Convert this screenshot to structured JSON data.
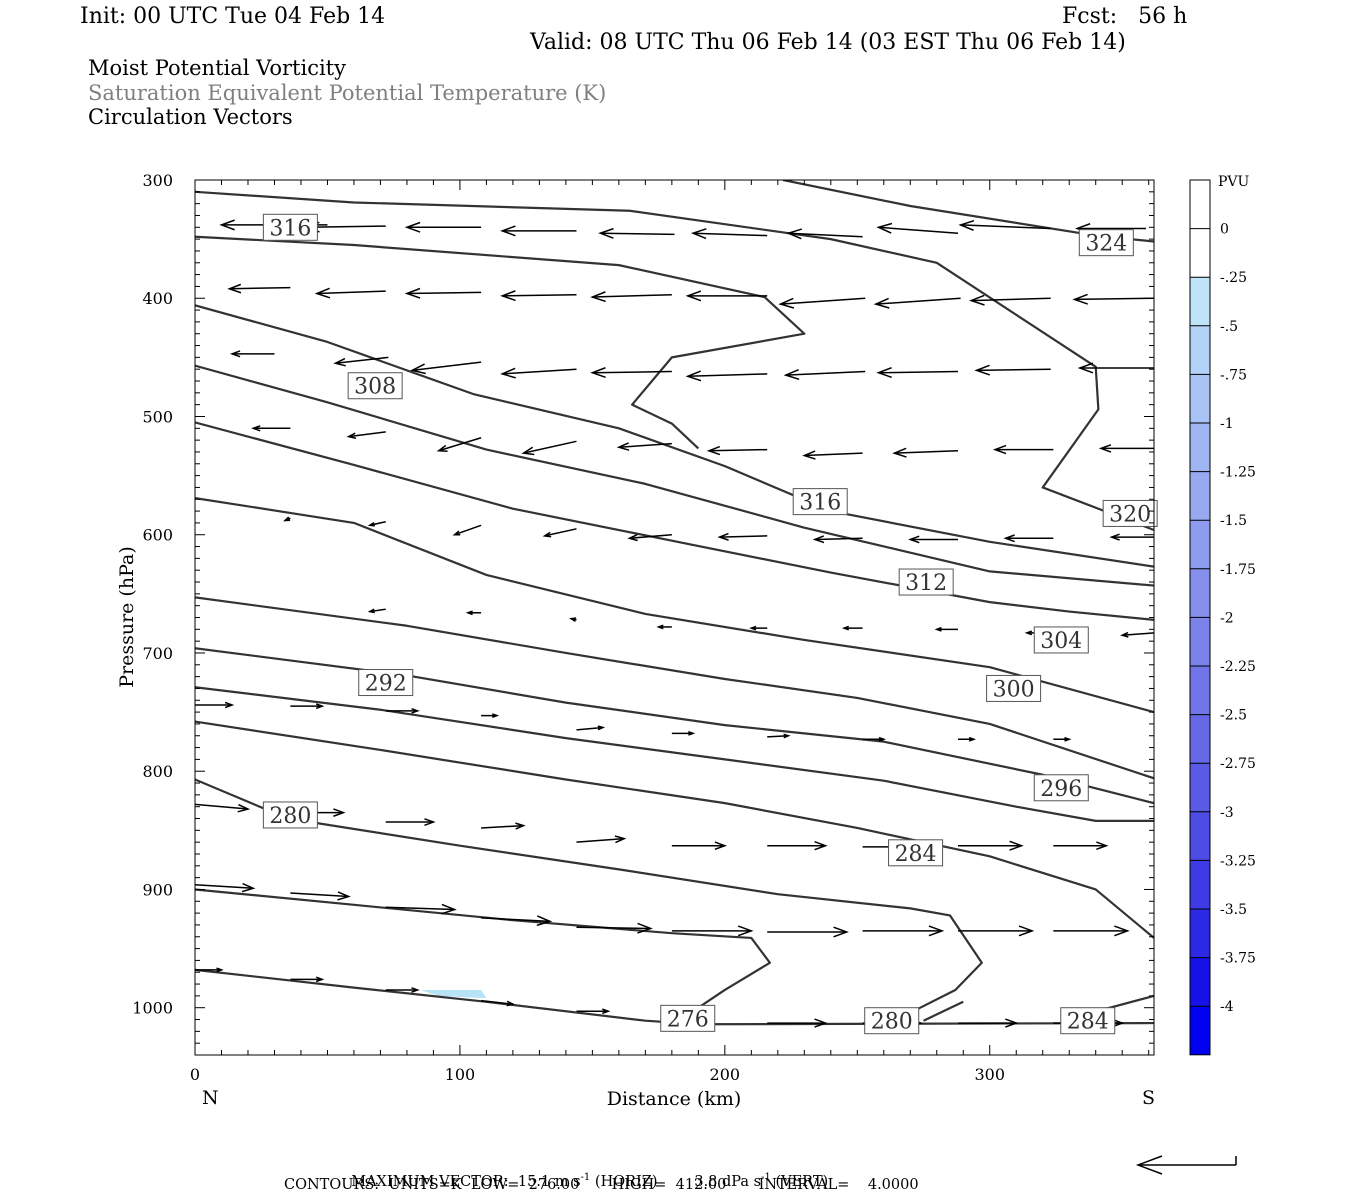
{
  "header": {
    "init": "Init: 00 UTC Tue 04 Feb 14",
    "fcst": "Fcst:   56 h",
    "valid": "Valid: 08 UTC Thu 06 Feb 14 (03 EST Thu 06 Feb 14)",
    "field1": "Moist Potential Vorticity",
    "field2": "Saturation Equivalent Potential Temperature (K)",
    "field3": "Circulation Vectors"
  },
  "footer": {
    "max_vector": "MAXIMUM VECTOR:  15.1 m s",
    "max_vector_sup": "-1",
    "horiz": " (HORIZ)        3.8 dPa s",
    "horiz_sup": "-1",
    "vert": " (VERT)",
    "contours": "CONTOURS:  UNITS=K  LOW=  276.00       HIGH=  412.00       INTERVAL=    4.0000"
  },
  "colors": {
    "contour": "#333333",
    "vector": "#000000",
    "label_fill": "#ffffff",
    "pv_light": "#b8e2f6",
    "grey_text": "#7f7f7f"
  },
  "chart_data": {
    "type": "cross-section",
    "xlabel": "Distance (km)",
    "ylabel": "Pressure (hPa)",
    "x_ticks": [
      "0",
      "100",
      "200",
      "300"
    ],
    "x_tick_values": [
      0,
      100,
      200,
      300
    ],
    "y_ticks": [
      "300",
      "400",
      "500",
      "600",
      "700",
      "800",
      "900",
      "1000"
    ],
    "y_tick_values": [
      300,
      400,
      500,
      600,
      700,
      800,
      900,
      1000
    ],
    "xlim": [
      0,
      362
    ],
    "ylim": [
      300,
      1040
    ],
    "x_end_labels": {
      "left": "N",
      "right": "S"
    },
    "colorbar": {
      "unit": "PVU",
      "labels": [
        "0",
        "-.25",
        "-.5",
        "-.75",
        "-1",
        "-1.25",
        "-1.5",
        "-1.75",
        "-2",
        "-2.25",
        "-2.5",
        "-2.75",
        "-3",
        "-3.25",
        "-3.5",
        "-3.75",
        "-4"
      ],
      "colors": [
        "#ffffff",
        "#ffffff",
        "#bfe4f9",
        "#b2d3f7",
        "#a9c3f4",
        "#9fb5f2",
        "#98a9f0",
        "#8d9cee",
        "#8590ec",
        "#7b82ea",
        "#7175e8",
        "#6668e6",
        "#5a5ae5",
        "#4d4ce4",
        "#3d3be4",
        "#2b29e4",
        "#1612e7",
        "#0000f0"
      ]
    },
    "contours": [
      {
        "value": 276,
        "label": "276",
        "label_at": [
          186,
          1009
        ],
        "points": [
          [
            0,
            968
          ],
          [
            60,
            983
          ],
          [
            110,
            995
          ],
          [
            170,
            1011
          ],
          [
            190,
            1014
          ],
          [
            362,
            1013
          ]
        ]
      },
      {
        "value": 280,
        "label": "280",
        "label_at": [
          36,
          837
        ],
        "points": [
          [
            0,
            900
          ],
          [
            60,
            913
          ],
          [
            120,
            926
          ],
          [
            180,
            937
          ],
          [
            210,
            941
          ],
          [
            217,
            962
          ],
          [
            200,
            985
          ],
          [
            190,
            1000
          ]
        ]
      },
      {
        "value": 280,
        "label": "280",
        "label_at": [
          263,
          1011
        ],
        "points": [
          [
            275,
            1011
          ],
          [
            290,
            995
          ]
        ]
      },
      {
        "value": 284,
        "label": "284",
        "label_at": [
          272,
          869
        ],
        "points": [
          [
            0,
            807
          ],
          [
            35,
            840
          ],
          [
            100,
            863
          ],
          [
            160,
            883
          ],
          [
            220,
            904
          ],
          [
            270,
            916
          ],
          [
            285,
            922
          ],
          [
            297,
            962
          ],
          [
            287,
            985
          ],
          [
            272,
            1002
          ]
        ]
      },
      {
        "value": 284,
        "label": "284",
        "label_at": [
          337,
          1011
        ],
        "points": [
          [
            332,
            1008
          ],
          [
            362,
            990
          ]
        ]
      },
      {
        "value": 288,
        "points": [
          [
            0,
            758
          ],
          [
            70,
            782
          ],
          [
            140,
            807
          ],
          [
            200,
            827
          ],
          [
            250,
            848
          ],
          [
            300,
            872
          ],
          [
            340,
            900
          ],
          [
            362,
            941
          ]
        ]
      },
      {
        "value": 292,
        "label": "292",
        "label_at": [
          72,
          725
        ],
        "points": [
          [
            0,
            729
          ],
          [
            70,
            748
          ],
          [
            140,
            772
          ],
          [
            200,
            790
          ],
          [
            260,
            808
          ],
          [
            310,
            830
          ],
          [
            340,
            842
          ],
          [
            362,
            842
          ]
        ]
      },
      {
        "value": 296,
        "label": "296",
        "label_at": [
          327,
          814
        ],
        "points": [
          [
            0,
            696
          ],
          [
            80,
            719
          ],
          [
            140,
            742
          ],
          [
            200,
            761
          ],
          [
            260,
            775
          ],
          [
            320,
            803
          ],
          [
            362,
            827
          ]
        ]
      },
      {
        "value": 300,
        "label": "300",
        "label_at": [
          309,
          730
        ],
        "points": [
          [
            0,
            653
          ],
          [
            80,
            677
          ],
          [
            140,
            700
          ],
          [
            200,
            722
          ],
          [
            250,
            738
          ],
          [
            300,
            760
          ],
          [
            362,
            806
          ]
        ]
      },
      {
        "value": 304,
        "label": "304",
        "label_at": [
          327,
          689
        ],
        "points": [
          [
            0,
            569
          ],
          [
            60,
            590
          ],
          [
            110,
            634
          ],
          [
            170,
            667
          ],
          [
            230,
            689
          ],
          [
            300,
            712
          ],
          [
            362,
            750
          ]
        ]
      },
      {
        "value": 308,
        "label": "308",
        "label_at": [
          68,
          474
        ],
        "points": [
          [
            0,
            505
          ],
          [
            60,
            541
          ],
          [
            120,
            578
          ],
          [
            180,
            605
          ],
          [
            240,
            632
          ],
          [
            300,
            657
          ],
          [
            330,
            665
          ],
          [
            362,
            672
          ]
        ]
      },
      {
        "value": 312,
        "label": "312",
        "label_at": [
          276,
          640
        ],
        "points": [
          [
            0,
            457
          ],
          [
            50,
            488
          ],
          [
            110,
            528
          ],
          [
            170,
            557
          ],
          [
            230,
            594
          ],
          [
            300,
            631
          ],
          [
            362,
            643
          ]
        ]
      },
      {
        "value": 316,
        "label": "316",
        "label_at": [
          236,
          572
        ],
        "points": [
          [
            0,
            406
          ],
          [
            50,
            437
          ],
          [
            105,
            481
          ],
          [
            160,
            510
          ],
          [
            200,
            542
          ],
          [
            240,
            580
          ],
          [
            300,
            606
          ],
          [
            362,
            627
          ]
        ]
      },
      {
        "value": 316,
        "label": "316",
        "label_at": [
          36,
          340
        ],
        "points": [
          [
            0,
            348
          ],
          [
            60,
            355
          ],
          [
            160,
            372
          ],
          [
            215,
            399
          ],
          [
            230,
            430
          ],
          [
            180,
            450
          ],
          [
            165,
            490
          ],
          [
            180,
            506
          ],
          [
            190,
            527
          ]
        ]
      },
      {
        "value": 320,
        "label": "320",
        "label_at": [
          353,
          582
        ],
        "points": [
          [
            0,
            310
          ],
          [
            60,
            319
          ],
          [
            164,
            326
          ],
          [
            240,
            350
          ],
          [
            280,
            370
          ],
          [
            340,
            458
          ],
          [
            341,
            494
          ],
          [
            320,
            560
          ],
          [
            362,
            596
          ]
        ]
      },
      {
        "value": 324,
        "label": "324",
        "label_at": [
          344,
          353
        ],
        "points": [
          [
            222,
            300
          ],
          [
            270,
            322
          ],
          [
            340,
            347
          ],
          [
            362,
            352
          ]
        ]
      }
    ],
    "pv_shading": [
      {
        "value": -0.25,
        "points": [
          [
            85,
            985
          ],
          [
            108,
            985
          ],
          [
            110,
            992
          ],
          [
            92,
            990
          ]
        ]
      }
    ],
    "vectors": [
      {
        "x": 37,
        "p": 338,
        "dx": -27,
        "dp": 0
      },
      {
        "x": 50,
        "p": 338,
        "dx": -22,
        "dp": 0
      },
      {
        "x": 72,
        "p": 339,
        "dx": -30,
        "dp": 1
      },
      {
        "x": 108,
        "p": 340,
        "dx": -28,
        "dp": 0
      },
      {
        "x": 144,
        "p": 343,
        "dx": -28,
        "dp": 0
      },
      {
        "x": 181,
        "p": 346,
        "dx": -28,
        "dp": -1
      },
      {
        "x": 216,
        "p": 347,
        "dx": -28,
        "dp": -2
      },
      {
        "x": 252,
        "p": 348,
        "dx": -28,
        "dp": -3
      },
      {
        "x": 288,
        "p": 345,
        "dx": -30,
        "dp": -5
      },
      {
        "x": 323,
        "p": 341,
        "dx": -34,
        "dp": -3
      },
      {
        "x": 359,
        "p": 341,
        "dx": -26,
        "dp": 0
      },
      {
        "x": 36,
        "p": 391,
        "dx": -23,
        "dp": 1
      },
      {
        "x": 72,
        "p": 394,
        "dx": -26,
        "dp": 2
      },
      {
        "x": 108,
        "p": 395,
        "dx": -28,
        "dp": 1
      },
      {
        "x": 144,
        "p": 397,
        "dx": -28,
        "dp": 1
      },
      {
        "x": 180,
        "p": 397,
        "dx": -30,
        "dp": 2
      },
      {
        "x": 216,
        "p": 398,
        "dx": -30,
        "dp": 0
      },
      {
        "x": 253,
        "p": 400,
        "dx": -32,
        "dp": 5
      },
      {
        "x": 289,
        "p": 400,
        "dx": -32,
        "dp": 5
      },
      {
        "x": 323,
        "p": 400,
        "dx": -30,
        "dp": 2
      },
      {
        "x": 362,
        "p": 400,
        "dx": -30,
        "dp": 1
      },
      {
        "x": 30,
        "p": 447,
        "dx": -16,
        "dp": 0
      },
      {
        "x": 73,
        "p": 450,
        "dx": -20,
        "dp": 5
      },
      {
        "x": 108,
        "p": 454,
        "dx": -26,
        "dp": 7
      },
      {
        "x": 144,
        "p": 460,
        "dx": -28,
        "dp": 4
      },
      {
        "x": 180,
        "p": 462,
        "dx": -30,
        "dp": 1
      },
      {
        "x": 216,
        "p": 464,
        "dx": -30,
        "dp": 2
      },
      {
        "x": 253,
        "p": 462,
        "dx": -30,
        "dp": 3
      },
      {
        "x": 288,
        "p": 462,
        "dx": -30,
        "dp": 1
      },
      {
        "x": 323,
        "p": 460,
        "dx": -28,
        "dp": 1
      },
      {
        "x": 362,
        "p": 459,
        "dx": -28,
        "dp": 0
      },
      {
        "x": 36,
        "p": 510,
        "dx": -14,
        "dp": 0
      },
      {
        "x": 72,
        "p": 513,
        "dx": -14,
        "dp": 4
      },
      {
        "x": 108,
        "p": 518,
        "dx": -16,
        "dp": 11
      },
      {
        "x": 144,
        "p": 521,
        "dx": -20,
        "dp": 10
      },
      {
        "x": 180,
        "p": 523,
        "dx": -20,
        "dp": 3
      },
      {
        "x": 216,
        "p": 528,
        "dx": -22,
        "dp": 1
      },
      {
        "x": 252,
        "p": 531,
        "dx": -22,
        "dp": 2
      },
      {
        "x": 288,
        "p": 529,
        "dx": -24,
        "dp": 2
      },
      {
        "x": 324,
        "p": 528,
        "dx": -22,
        "dp": 0
      },
      {
        "x": 362,
        "p": 527,
        "dx": -20,
        "dp": 0
      },
      {
        "x": 36,
        "p": 586,
        "dx": -2,
        "dp": 2
      },
      {
        "x": 72,
        "p": 589,
        "dx": -6,
        "dp": 3
      },
      {
        "x": 108,
        "p": 592,
        "dx": -10,
        "dp": 8
      },
      {
        "x": 144,
        "p": 595,
        "dx": -12,
        "dp": 6
      },
      {
        "x": 180,
        "p": 600,
        "dx": -16,
        "dp": 3
      },
      {
        "x": 216,
        "p": 601,
        "dx": -18,
        "dp": 1
      },
      {
        "x": 252,
        "p": 603,
        "dx": -18,
        "dp": 1
      },
      {
        "x": 288,
        "p": 604,
        "dx": -18,
        "dp": 0
      },
      {
        "x": 324,
        "p": 603,
        "dx": -18,
        "dp": 0
      },
      {
        "x": 362,
        "p": 602,
        "dx": -16,
        "dp": 0
      },
      {
        "x": 72,
        "p": 663,
        "dx": -6,
        "dp": 2
      },
      {
        "x": 108,
        "p": 666,
        "dx": -5,
        "dp": 0
      },
      {
        "x": 144,
        "p": 672,
        "dx": -2,
        "dp": -1
      },
      {
        "x": 180,
        "p": 678,
        "dx": -5,
        "dp": 0
      },
      {
        "x": 216,
        "p": 679,
        "dx": -6,
        "dp": 0
      },
      {
        "x": 252,
        "p": 679,
        "dx": -7,
        "dp": 0
      },
      {
        "x": 288,
        "p": 680,
        "dx": -8,
        "dp": 0
      },
      {
        "x": 324,
        "p": 683,
        "dx": -10,
        "dp": 0
      },
      {
        "x": 362,
        "p": 683,
        "dx": -12,
        "dp": 2
      },
      {
        "x": 0,
        "p": 744,
        "dx": 14,
        "dp": 0
      },
      {
        "x": 36,
        "p": 745,
        "dx": 12,
        "dp": 0
      },
      {
        "x": 72,
        "p": 749,
        "dx": 12,
        "dp": 0
      },
      {
        "x": 108,
        "p": 753,
        "dx": 6,
        "dp": 0
      },
      {
        "x": 144,
        "p": 765,
        "dx": 10,
        "dp": -2
      },
      {
        "x": 180,
        "p": 768,
        "dx": 8,
        "dp": 0
      },
      {
        "x": 216,
        "p": 771,
        "dx": 8,
        "dp": -1
      },
      {
        "x": 252,
        "p": 773,
        "dx": 8,
        "dp": 0
      },
      {
        "x": 288,
        "p": 773,
        "dx": 6,
        "dp": 0
      },
      {
        "x": 324,
        "p": 773,
        "dx": 6,
        "dp": 0
      },
      {
        "x": 0,
        "p": 828,
        "dx": 20,
        "dp": 4
      },
      {
        "x": 36,
        "p": 835,
        "dx": 20,
        "dp": 0
      },
      {
        "x": 72,
        "p": 843,
        "dx": 18,
        "dp": 0
      },
      {
        "x": 108,
        "p": 848,
        "dx": 16,
        "dp": -2
      },
      {
        "x": 144,
        "p": 860,
        "dx": 18,
        "dp": -3
      },
      {
        "x": 180,
        "p": 863,
        "dx": 20,
        "dp": 0
      },
      {
        "x": 216,
        "p": 863,
        "dx": 22,
        "dp": 0
      },
      {
        "x": 252,
        "p": 864,
        "dx": 24,
        "dp": 0
      },
      {
        "x": 288,
        "p": 863,
        "dx": 24,
        "dp": 0
      },
      {
        "x": 324,
        "p": 863,
        "dx": 20,
        "dp": 0
      },
      {
        "x": 0,
        "p": 896,
        "dx": 22,
        "dp": 3
      },
      {
        "x": 36,
        "p": 903,
        "dx": 22,
        "dp": 3
      },
      {
        "x": 72,
        "p": 915,
        "dx": 26,
        "dp": 2
      },
      {
        "x": 108,
        "p": 924,
        "dx": 26,
        "dp": 3
      },
      {
        "x": 144,
        "p": 932,
        "dx": 28,
        "dp": 1
      },
      {
        "x": 180,
        "p": 935,
        "dx": 30,
        "dp": 0
      },
      {
        "x": 216,
        "p": 936,
        "dx": 30,
        "dp": 0
      },
      {
        "x": 252,
        "p": 935,
        "dx": 30,
        "dp": 0
      },
      {
        "x": 288,
        "p": 935,
        "dx": 28,
        "dp": 0
      },
      {
        "x": 324,
        "p": 935,
        "dx": 28,
        "dp": 0
      },
      {
        "x": 0,
        "p": 968,
        "dx": 10,
        "dp": 0
      },
      {
        "x": 36,
        "p": 976,
        "dx": 12,
        "dp": 0
      },
      {
        "x": 72,
        "p": 985,
        "dx": 12,
        "dp": 0
      },
      {
        "x": 108,
        "p": 994,
        "dx": 12,
        "dp": 3
      },
      {
        "x": 144,
        "p": 1003,
        "dx": 12,
        "dp": 0
      },
      {
        "x": 216,
        "p": 1013,
        "dx": 22,
        "dp": 0
      },
      {
        "x": 252,
        "p": 1013,
        "dx": 22,
        "dp": 0
      },
      {
        "x": 288,
        "p": 1013,
        "dx": 22,
        "dp": 0
      },
      {
        "x": 324,
        "p": 1013,
        "dx": 26,
        "dp": 0
      }
    ]
  }
}
